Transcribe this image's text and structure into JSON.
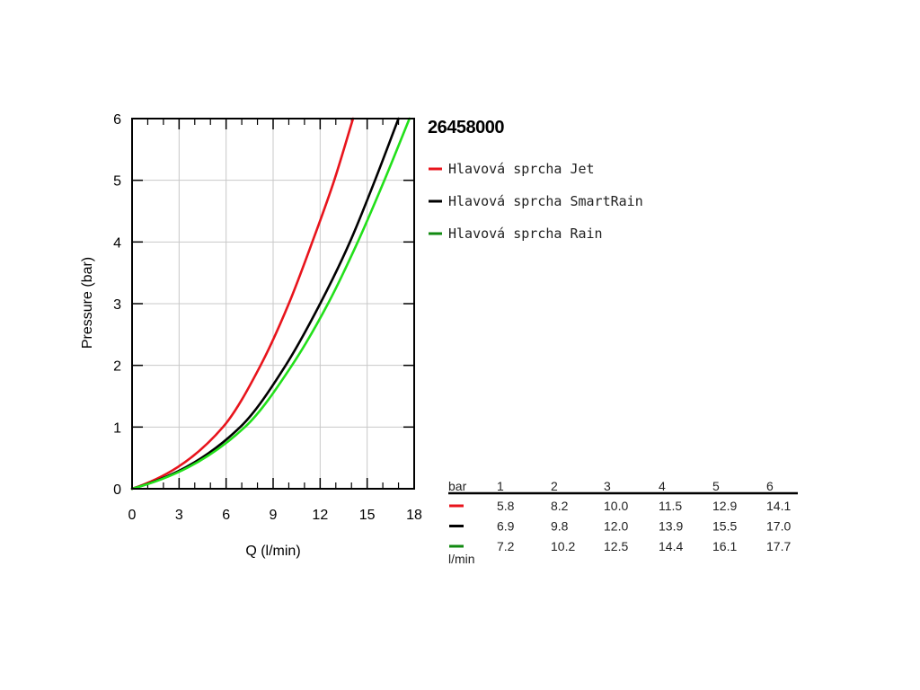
{
  "chart_data": {
    "type": "line",
    "title": "26458000",
    "xlabel": "Q (l/min)",
    "ylabel": "Pressure (bar)",
    "xlim": [
      0,
      18
    ],
    "ylim": [
      0,
      6
    ],
    "xticks": [
      "0",
      "3",
      "6",
      "9",
      "12",
      "15",
      "18"
    ],
    "yticks": [
      "0",
      "1",
      "2",
      "3",
      "4",
      "5",
      "6"
    ],
    "grid": true,
    "legend_position": "right",
    "series": [
      {
        "name": "Hlavová sprcha Jet",
        "color": "#e8141c",
        "x": [
          0,
          5.8,
          8.2,
          10.0,
          11.5,
          12.9,
          14.1
        ],
        "y": [
          0,
          1,
          2,
          3,
          4,
          5,
          6
        ]
      },
      {
        "name": "Hlavová sprcha SmartRain",
        "color": "#000000",
        "x": [
          0,
          6.9,
          9.8,
          12.0,
          13.9,
          15.5,
          17.0
        ],
        "y": [
          0,
          1,
          2,
          3,
          4,
          5,
          6
        ]
      },
      {
        "name": "Hlavová sprcha Rain",
        "color": "#22e01a",
        "legend_color": "#118a11",
        "x": [
          0,
          7.2,
          10.2,
          12.5,
          14.4,
          16.1,
          17.7
        ],
        "y": [
          0,
          1,
          2,
          3,
          4,
          5,
          6
        ]
      }
    ],
    "table": {
      "header_label": "bar",
      "footer_label": "l/min",
      "columns": [
        "1",
        "2",
        "3",
        "4",
        "5",
        "6"
      ],
      "rows": [
        {
          "color": "#e8141c",
          "values": [
            "5.8",
            "8.2",
            "10.0",
            "11.5",
            "12.9",
            "14.1"
          ]
        },
        {
          "color": "#000000",
          "values": [
            "6.9",
            "9.8",
            "12.0",
            "13.9",
            "15.5",
            "17.0"
          ]
        },
        {
          "color": "#118a11",
          "values": [
            "7.2",
            "10.2",
            "12.5",
            "14.4",
            "16.1",
            "17.7"
          ]
        }
      ]
    }
  }
}
